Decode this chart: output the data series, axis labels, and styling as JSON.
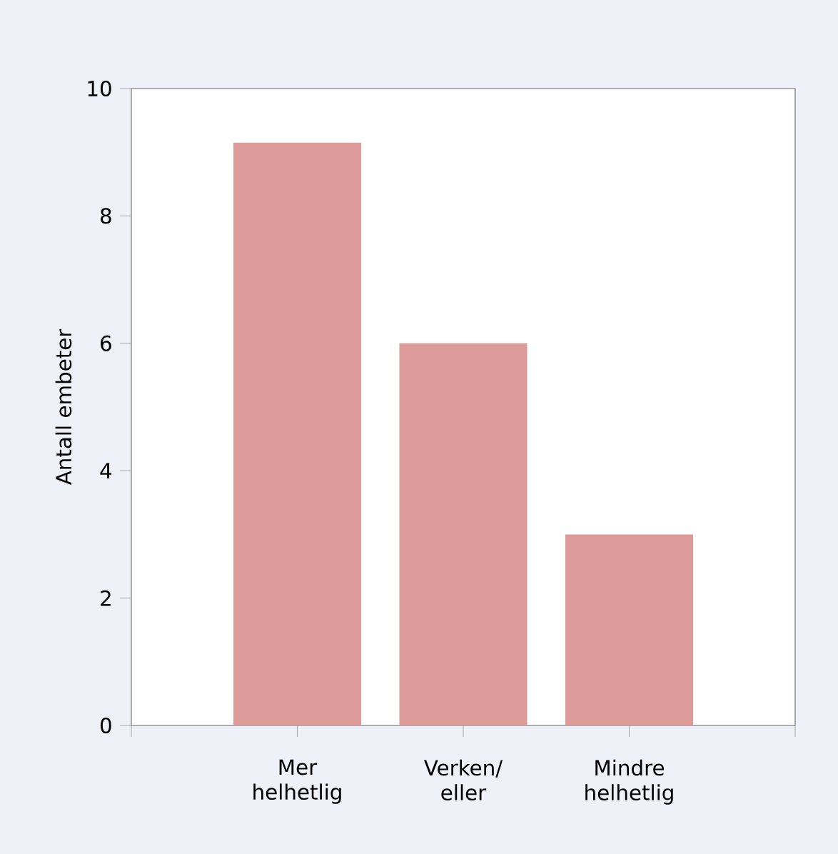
{
  "chart_data": {
    "type": "bar",
    "ylabel": "Antall embeter",
    "categories": [
      "Mer helhetlig",
      "Verken/ eller",
      "Mindre helhetlig"
    ],
    "values": [
      9.15,
      6,
      3
    ],
    "color": "#dc9a98",
    "ylim": [
      0,
      10
    ],
    "yticks": [
      0,
      2,
      4,
      6,
      8,
      10
    ]
  }
}
